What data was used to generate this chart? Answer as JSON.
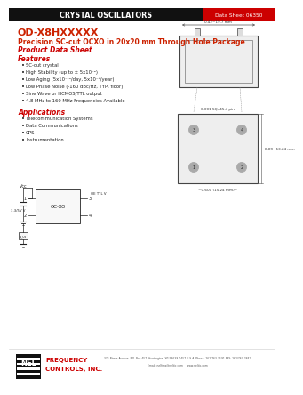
{
  "header_text": "CRYSTAL OSCILLATORS",
  "datasheet_label": "Data Sheet 06350",
  "title_line1": "OD-X8HXXXXX",
  "title_line2": "Precision SC-cut OCXO in 20x20 mm Through Hole Package",
  "product_data_sheet": "Product Data Sheet",
  "features_title": "Features",
  "features": [
    "SC-cut crystal",
    "High Stability (up to ± 5x10⁻⁹)",
    "Low Aging (5x10⁻¹⁰/day, 5x10⁻⁸/year)",
    "Low Phase Noise (-160 dBc/Hz, TYP, floor)",
    "Sine Wave or HCMOS/TTL output",
    "4.8 MHz to 160 MHz Frequencies Available"
  ],
  "applications_title": "Applications",
  "applications": [
    "Telecommunication Systems",
    "Data Communications",
    "GPS",
    "Instrumentation"
  ],
  "footer_addr": "375 Birnie Avenue, P.O. Box 457, Huntington, WI 53639-0457 U.S.A. Phone: 262/763-3591 FAX: 262/763-2841",
  "footer_email": "Email: nelfreq@neltic.com    www.neltic.com",
  "bg_color": "#ffffff",
  "header_bg": "#111111",
  "header_text_color": "#ffffff",
  "red_color": "#cc0000",
  "title_color": "#cc2200",
  "dim1": "0.42~19.7 mm",
  "dim2": "0.001 SQ, 45.4 pin",
  "dim3": "8.89~13.24 mm",
  "dim4": "~0.600 (15.24 mm)~"
}
